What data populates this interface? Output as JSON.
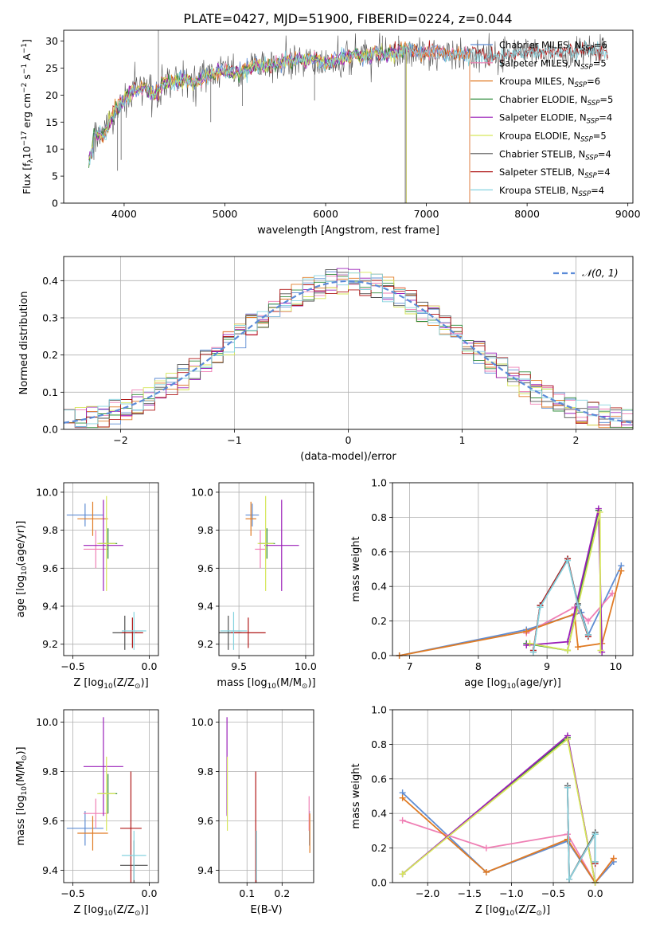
{
  "title": "PLATE=0427, MJD=51900, FIBERID=0224, z=0.044",
  "colors": {
    "Chabrier MILES": "#5f8dd3",
    "Salpeter MILES": "#ef7fb4",
    "Kroupa MILES": "#e07b24",
    "Chabrier ELODIE": "#2e8b3a",
    "Salpeter ELODIE": "#9a1fb8",
    "Kroupa ELODIE": "#d6e65a",
    "Chabrier STELIB": "#505050",
    "Salpeter STELIB": "#b01818",
    "Kroupa STELIB": "#86d3df",
    "gaussian": "#5b8bd8",
    "grid": "#b0b0b0"
  },
  "chart_data": [
    {
      "id": "spectrum",
      "type": "line",
      "xlabel": "wavelength [Angstrom, rest frame]",
      "ylabel_parts": [
        "Flux [f",
        "λ",
        "10",
        "−17",
        " erg cm",
        "−2",
        " s",
        "−1",
        " A",
        "−1",
        "]"
      ],
      "xlim": [
        3400,
        9050
      ],
      "ylim": [
        0,
        32
      ],
      "xticks": [
        4000,
        5000,
        6000,
        7000,
        8000,
        9000
      ],
      "yticks": [
        0,
        5,
        10,
        15,
        20,
        25,
        30
      ],
      "grid": false,
      "legend_position": "right",
      "continuum": {
        "x": [
          3650,
          3700,
          3800,
          3900,
          4000,
          4100,
          4200,
          4300,
          4400,
          4500,
          4600,
          4700,
          4800,
          4900,
          5000,
          5100,
          5200,
          5300,
          5400,
          5500,
          5600,
          5700,
          5800,
          5900,
          6000,
          6100,
          6200,
          6300,
          6400,
          6500,
          6600,
          6700,
          6800,
          6900,
          7000,
          7100,
          7200,
          7300,
          7400,
          7500,
          7600,
          7700,
          7800,
          8000,
          8200,
          8400,
          8600,
          8800
        ],
        "y": [
          10,
          13,
          12.5,
          17,
          19,
          21,
          21.5,
          20,
          22.5,
          22.5,
          23,
          22,
          23.5,
          24,
          24.5,
          24,
          24.5,
          25.5,
          25.5,
          25.5,
          26.5,
          26.5,
          26.5,
          27,
          25.5,
          26.5,
          27,
          27.5,
          27,
          28,
          27.5,
          27.5,
          28.5,
          28,
          28,
          28,
          27.5,
          27.5,
          27.5,
          27.5,
          27,
          27,
          27.5,
          28,
          28,
          28,
          28.5,
          28
        ]
      },
      "series": [
        {
          "name": "Chabrier MILES",
          "nssp": "6",
          "end": 7430
        },
        {
          "name": "Salpeter MILES",
          "nssp": "5",
          "end": 7430
        },
        {
          "name": "Kroupa MILES",
          "nssp": "6",
          "end": 7430
        },
        {
          "name": "Chabrier ELODIE",
          "nssp": "5",
          "end": 6800
        },
        {
          "name": "Salpeter ELODIE",
          "nssp": "4",
          "end": 6800
        },
        {
          "name": "Kroupa ELODIE",
          "nssp": "5",
          "end": 6800
        },
        {
          "name": "Chabrier STELIB",
          "nssp": "4",
          "end": 8800
        },
        {
          "name": "Salpeter STELIB",
          "nssp": "4",
          "end": 8800
        },
        {
          "name": "Kroupa STELIB",
          "nssp": "4",
          "end": 8800
        }
      ],
      "legend_label_base": "N",
      "legend_label_sub": "SSP"
    },
    {
      "id": "residuals",
      "type": "line",
      "xlabel": "(data-model)/error",
      "ylabel": "Normed distribution",
      "xlim": [
        -2.5,
        2.5
      ],
      "ylim": [
        0,
        0.465
      ],
      "xticks": [
        -2,
        -1,
        0,
        1,
        2
      ],
      "xtick_labels": [
        "−2",
        "−1",
        "0",
        "1",
        "2"
      ],
      "yticks": [
        0.0,
        0.1,
        0.2,
        0.3,
        0.4
      ],
      "ytick_labels": [
        "0.0",
        "0.1",
        "0.2",
        "0.3",
        "0.4"
      ],
      "grid": true,
      "legend_position": "top-right",
      "legend_label": "𝒩(0, 1)",
      "bin_width": 0.1
    },
    {
      "id": "age-vs-z",
      "type": "scatter",
      "xlabel_parts": [
        "Z [log",
        "10",
        "(Z/Z",
        "⊙",
        ")]"
      ],
      "ylabel_parts": [
        "age  [log",
        "10",
        "(age/yr)]"
      ],
      "xlim": [
        -0.56,
        0.06
      ],
      "ylim": [
        9.14,
        10.05
      ],
      "xticks": [
        -0.5,
        0.0
      ],
      "xtick_labels": [
        "−0.5",
        "0.0"
      ],
      "yticks": [
        9.2,
        9.4,
        9.6,
        9.8,
        10.0
      ],
      "ytick_labels": [
        "9.2",
        "9.4",
        "9.6",
        "9.8",
        "10.0"
      ],
      "grid": true,
      "points": [
        {
          "model": "Chabrier MILES",
          "x": -0.42,
          "xerr": 0.12,
          "y": 9.88,
          "yerr": 0.06
        },
        {
          "model": "Salpeter MILES",
          "x": -0.35,
          "xerr": 0.08,
          "y": 9.7,
          "yerr": 0.1
        },
        {
          "model": "Kroupa MILES",
          "x": -0.37,
          "xerr": 0.1,
          "y": 9.86,
          "yerr": 0.09
        },
        {
          "model": "Chabrier ELODIE",
          "x": -0.27,
          "xerr": 0.06,
          "y": 9.73,
          "yerr": 0.08
        },
        {
          "model": "Salpeter ELODIE",
          "x": -0.3,
          "xerr": 0.13,
          "y": 9.72,
          "yerr": 0.24
        },
        {
          "model": "Kroupa ELODIE",
          "x": -0.28,
          "xerr": 0.06,
          "y": 9.73,
          "yerr": 0.25
        },
        {
          "model": "Chabrier STELIB",
          "x": -0.16,
          "xerr": 0.08,
          "y": 9.26,
          "yerr": 0.09
        },
        {
          "model": "Salpeter STELIB",
          "x": -0.11,
          "xerr": 0.07,
          "y": 9.26,
          "yerr": 0.08
        },
        {
          "model": "Kroupa STELIB",
          "x": -0.1,
          "xerr": 0.08,
          "y": 9.27,
          "yerr": 0.1
        }
      ]
    },
    {
      "id": "age-vs-mass",
      "type": "scatter",
      "xlabel_parts": [
        "mass [log",
        "10",
        "(M/M",
        "⊙",
        ")]"
      ],
      "ylabel_parts": [],
      "xlim": [
        9.35,
        10.06
      ],
      "ylim": [
        9.14,
        10.05
      ],
      "xticks": [
        9.5,
        10.0
      ],
      "xtick_labels": [
        "9.5",
        "10.0"
      ],
      "yticks": [
        9.2,
        9.4,
        9.6,
        9.8,
        10.0
      ],
      "ytick_labels": [
        "9.2",
        "9.4",
        "9.6",
        "9.8",
        "10.0"
      ],
      "grid": true,
      "points": [
        {
          "model": "Chabrier MILES",
          "x": 9.6,
          "xerr": 0.05,
          "y": 9.88,
          "yerr": 0.06
        },
        {
          "model": "Salpeter MILES",
          "x": 9.66,
          "xerr": 0.04,
          "y": 9.7,
          "yerr": 0.1
        },
        {
          "model": "Kroupa MILES",
          "x": 9.59,
          "xerr": 0.04,
          "y": 9.86,
          "yerr": 0.09
        },
        {
          "model": "Chabrier ELODIE",
          "x": 9.71,
          "xerr": 0.06,
          "y": 9.73,
          "yerr": 0.08
        },
        {
          "model": "Salpeter ELODIE",
          "x": 9.82,
          "xerr": 0.13,
          "y": 9.72,
          "yerr": 0.24
        },
        {
          "model": "Kroupa ELODIE",
          "x": 9.7,
          "xerr": 0.06,
          "y": 9.73,
          "yerr": 0.25
        },
        {
          "model": "Chabrier STELIB",
          "x": 9.42,
          "xerr": 0.1,
          "y": 9.26,
          "yerr": 0.09
        },
        {
          "model": "Salpeter STELIB",
          "x": 9.57,
          "xerr": 0.13,
          "y": 9.26,
          "yerr": 0.08
        },
        {
          "model": "Kroupa STELIB",
          "x": 9.46,
          "xerr": 0.1,
          "y": 9.27,
          "yerr": 0.1
        }
      ]
    },
    {
      "id": "weight-vs-age",
      "type": "line",
      "xlabel_parts": [
        "age  [log",
        "10",
        "(age/yr)]"
      ],
      "ylabel": "mass weight",
      "xlim": [
        6.75,
        10.25
      ],
      "ylim": [
        0,
        1.0
      ],
      "xticks": [
        7,
        8,
        9,
        10
      ],
      "xtick_labels": [
        "7",
        "8",
        "9",
        "10"
      ],
      "yticks": [
        0.0,
        0.2,
        0.4,
        0.6,
        0.8,
        1.0
      ],
      "ytick_labels": [
        "0.0",
        "0.2",
        "0.4",
        "0.6",
        "0.8",
        "1.0"
      ],
      "grid": true,
      "series": [
        {
          "model": "Chabrier MILES",
          "x": [
            6.85,
            8.7,
            9.5,
            9.6,
            10.08
          ],
          "y": [
            0.0,
            0.15,
            0.25,
            0.12,
            0.52
          ]
        },
        {
          "model": "Salpeter MILES",
          "x": [
            8.7,
            9.4,
            9.6,
            9.95
          ],
          "y": [
            0.13,
            0.28,
            0.2,
            0.36
          ]
        },
        {
          "model": "Kroupa MILES",
          "x": [
            6.85,
            8.7,
            9.4,
            9.45,
            9.8,
            10.08
          ],
          "y": [
            0.0,
            0.14,
            0.24,
            0.05,
            0.07,
            0.49
          ]
        },
        {
          "model": "Chabrier ELODIE",
          "x": [
            8.7,
            9.3,
            9.75
          ],
          "y": [
            0.07,
            0.03,
            0.84
          ]
        },
        {
          "model": "Salpeter ELODIE",
          "x": [
            8.7,
            9.3,
            9.75,
            9.8
          ],
          "y": [
            0.06,
            0.08,
            0.85,
            0.02
          ]
        },
        {
          "model": "Kroupa ELODIE",
          "x": [
            8.75,
            9.3,
            9.77,
            9.78
          ],
          "y": [
            0.07,
            0.03,
            0.83,
            0.03
          ]
        },
        {
          "model": "Chabrier STELIB",
          "x": [
            8.8,
            8.9,
            9.3,
            9.45,
            9.6
          ],
          "y": [
            0.02,
            0.29,
            0.56,
            0.3,
            0.12
          ]
        },
        {
          "model": "Salpeter STELIB",
          "x": [
            8.8,
            8.9,
            9.3,
            9.45,
            9.6
          ],
          "y": [
            0.03,
            0.29,
            0.56,
            0.29,
            0.11
          ]
        },
        {
          "model": "Kroupa STELIB",
          "x": [
            8.8,
            8.9,
            9.3,
            9.45,
            9.6
          ],
          "y": [
            0.02,
            0.28,
            0.55,
            0.29,
            0.12
          ]
        }
      ]
    },
    {
      "id": "mass-vs-z",
      "type": "scatter",
      "xlabel_parts": [
        "Z [log",
        "10",
        "(Z/Z",
        "⊙",
        ")]"
      ],
      "ylabel_parts": [
        "mass [log",
        "10",
        "(M/M",
        "⊙",
        ")]"
      ],
      "xlim": [
        -0.56,
        0.06
      ],
      "ylim": [
        9.35,
        10.05
      ],
      "xticks": [
        -0.5,
        0.0
      ],
      "xtick_labels": [
        "−0.5",
        "0.0"
      ],
      "yticks": [
        9.4,
        9.6,
        9.8,
        10.0
      ],
      "ytick_labels": [
        "9.4",
        "9.6",
        "9.8",
        "10.0"
      ],
      "grid": true,
      "points": [
        {
          "model": "Chabrier MILES",
          "x": -0.42,
          "xerr": 0.12,
          "y": 9.57,
          "yerr": 0.07
        },
        {
          "model": "Salpeter MILES",
          "x": -0.35,
          "xerr": 0.08,
          "y": 9.63,
          "yerr": 0.06
        },
        {
          "model": "Kroupa MILES",
          "x": -0.37,
          "xerr": 0.1,
          "y": 9.55,
          "yerr": 0.07
        },
        {
          "model": "Chabrier ELODIE",
          "x": -0.27,
          "xerr": 0.06,
          "y": 9.71,
          "yerr": 0.08
        },
        {
          "model": "Salpeter ELODIE",
          "x": -0.3,
          "xerr": 0.13,
          "y": 9.82,
          "yerr": 0.2
        },
        {
          "model": "Kroupa ELODIE",
          "x": -0.28,
          "xerr": 0.06,
          "y": 9.71,
          "yerr": 0.15
        },
        {
          "model": "Chabrier STELIB",
          "x": -0.1,
          "xerr": 0.09,
          "y": 9.42,
          "yerr": 0.1
        },
        {
          "model": "Salpeter STELIB",
          "x": -0.12,
          "xerr": 0.07,
          "y": 9.57,
          "yerr": 0.23
        },
        {
          "model": "Kroupa STELIB",
          "x": -0.1,
          "xerr": 0.08,
          "y": 9.46,
          "yerr": 0.1
        }
      ]
    },
    {
      "id": "mass-vs-ebv",
      "type": "scatter",
      "xlabel": "E(B-V)",
      "ylabel_parts": [],
      "xlim": [
        0.02,
        0.29
      ],
      "ylim": [
        9.35,
        10.05
      ],
      "xticks": [
        0.1,
        0.2
      ],
      "xtick_labels": [
        "0.1",
        "0.2"
      ],
      "yticks": [
        9.4,
        9.6,
        9.8,
        10.0
      ],
      "ytick_labels": [
        "9.4",
        "9.6",
        "9.8",
        "10.0"
      ],
      "grid": true,
      "points": [
        {
          "model": "Chabrier MILES",
          "x": 0.278,
          "xerr": 0,
          "y": 9.57,
          "yerr": 0.07
        },
        {
          "model": "Salpeter MILES",
          "x": 0.277,
          "xerr": 0,
          "y": 9.63,
          "yerr": 0.07
        },
        {
          "model": "Kroupa MILES",
          "x": 0.279,
          "xerr": 0,
          "y": 9.55,
          "yerr": 0.08
        },
        {
          "model": "Chabrier ELODIE",
          "x": 0.043,
          "xerr": 0,
          "y": 9.71,
          "yerr": 0.08
        },
        {
          "model": "Salpeter ELODIE",
          "x": 0.043,
          "xerr": 0,
          "y": 9.82,
          "yerr": 0.2
        },
        {
          "model": "Kroupa ELODIE",
          "x": 0.044,
          "xerr": 0,
          "y": 9.71,
          "yerr": 0.15
        },
        {
          "model": "Chabrier STELIB",
          "x": 0.126,
          "xerr": 0,
          "y": 9.42,
          "yerr": 0.1
        },
        {
          "model": "Salpeter STELIB",
          "x": 0.125,
          "xerr": 0,
          "y": 9.57,
          "yerr": 0.23
        },
        {
          "model": "Kroupa STELIB",
          "x": 0.127,
          "xerr": 0,
          "y": 9.46,
          "yerr": 0.1
        }
      ]
    },
    {
      "id": "weight-vs-z",
      "type": "line",
      "xlabel_parts": [
        "Z [log",
        "10",
        "(Z/Z",
        "⊙",
        ")]"
      ],
      "ylabel": "mass weight",
      "xlim": [
        -2.42,
        0.45
      ],
      "ylim": [
        0,
        1.0
      ],
      "xticks": [
        -2.0,
        -1.5,
        -1.0,
        -0.5,
        0.0
      ],
      "xtick_labels": [
        "−2.0",
        "−1.5",
        "−1.0",
        "−0.5",
        "0.0"
      ],
      "yticks": [
        0.0,
        0.2,
        0.4,
        0.6,
        0.8,
        1.0
      ],
      "ytick_labels": [
        "0.0",
        "0.2",
        "0.4",
        "0.6",
        "0.8",
        "1.0"
      ],
      "grid": true,
      "series": [
        {
          "model": "Chabrier MILES",
          "x": [
            -2.3,
            -1.3,
            -0.33,
            0.0,
            0.22
          ],
          "y": [
            0.52,
            0.06,
            0.24,
            0.0,
            0.12
          ]
        },
        {
          "model": "Salpeter MILES",
          "x": [
            -2.3,
            -1.3,
            -0.33,
            0.0,
            0.22
          ],
          "y": [
            0.36,
            0.2,
            0.28,
            0.0,
            0.14
          ]
        },
        {
          "model": "Kroupa MILES",
          "x": [
            -2.3,
            -1.3,
            -0.33,
            0.0,
            0.22
          ],
          "y": [
            0.49,
            0.06,
            0.25,
            0.0,
            0.14
          ]
        },
        {
          "model": "Chabrier ELODIE",
          "x": [
            -2.3,
            -0.33,
            0.0
          ],
          "y": [
            0.05,
            0.84,
            0.0
          ]
        },
        {
          "model": "Salpeter ELODIE",
          "x": [
            -2.3,
            -0.33,
            0.0
          ],
          "y": [
            0.05,
            0.85,
            0.0
          ]
        },
        {
          "model": "Kroupa ELODIE",
          "x": [
            -2.3,
            -0.33,
            0.0
          ],
          "y": [
            0.05,
            0.83,
            0.0
          ]
        },
        {
          "model": "Chabrier STELIB",
          "x": [
            -0.33,
            -0.31,
            0.0,
            0.0
          ],
          "y": [
            0.56,
            0.02,
            0.29,
            0.12
          ]
        },
        {
          "model": "Salpeter STELIB",
          "x": [
            -0.33,
            -0.31,
            0.0,
            0.0
          ],
          "y": [
            0.55,
            0.02,
            0.28,
            0.11
          ]
        },
        {
          "model": "Kroupa STELIB",
          "x": [
            -0.33,
            -0.31,
            0.0,
            0.0
          ],
          "y": [
            0.55,
            0.02,
            0.28,
            0.12
          ]
        }
      ]
    }
  ]
}
